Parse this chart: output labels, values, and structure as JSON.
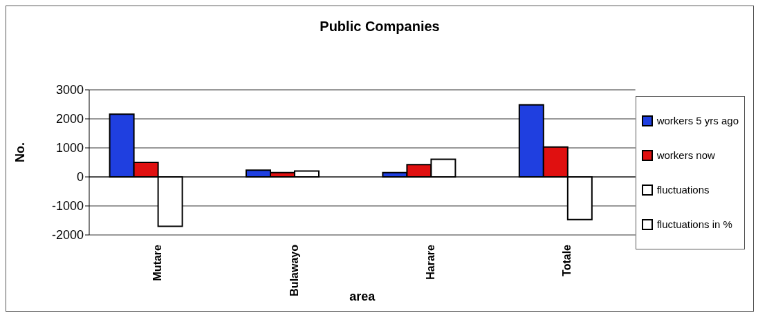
{
  "chart_data": {
    "type": "bar",
    "title": "Public Companies",
    "xlabel": "area",
    "ylabel": "No.",
    "categories": [
      "Mutare",
      "Bulawayo",
      "Harare",
      "Totale"
    ],
    "series": [
      {
        "name": "workers 5 yrs ago",
        "color": "#1f3fe0",
        "values": [
          2160,
          230,
          150,
          2480
        ]
      },
      {
        "name": "workers now",
        "color": "#e01010",
        "values": [
          500,
          150,
          420,
          1030
        ]
      },
      {
        "name": "fluctuations",
        "color": "#ffffff",
        "values": [
          -1700,
          200,
          610,
          -1470
        ]
      },
      {
        "name": "fluctuations in %",
        "color": "#ffffff",
        "values": [
          null,
          null,
          null,
          null
        ]
      }
    ],
    "ylim": [
      -2000,
      3000
    ],
    "yticks": [
      -2000,
      -1000,
      0,
      1000,
      2000,
      3000
    ],
    "grid": "y",
    "legend": "right"
  }
}
